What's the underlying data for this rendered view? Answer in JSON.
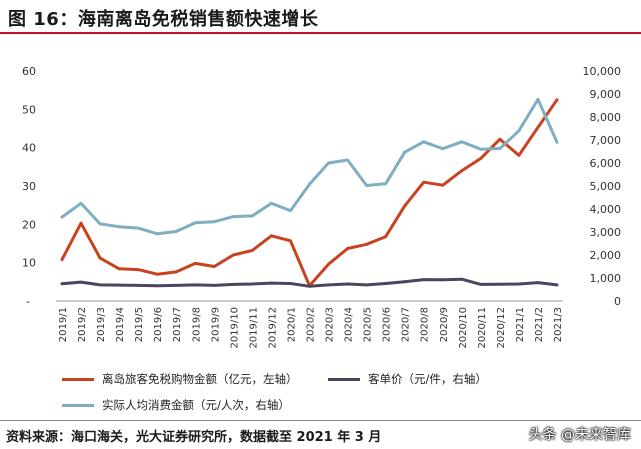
{
  "title": "图 16：海南离岛免税销售额快速增长",
  "source": "资料来源：海口海关，光大证券研究所，数据截至 2021 年 3 月",
  "watermark": "头条 @未来智库",
  "chart_data": {
    "type": "line",
    "categories": [
      "2019/1",
      "2019/2",
      "2019/3",
      "2019/4",
      "2019/5",
      "2019/6",
      "2019/7",
      "2019/8",
      "2019/9",
      "2019/10",
      "2019/11",
      "2019/12",
      "2020/1",
      "2020/2",
      "2020/3",
      "2020/4",
      "2020/5",
      "2020/6",
      "2020/7",
      "2020/8",
      "2020/9",
      "2020/10",
      "2020/11",
      "2020/12",
      "2021/1",
      "2021/2",
      "2021/3"
    ],
    "y_left": {
      "ylim": [
        0,
        60
      ],
      "ticks": [
        "0",
        "10",
        "20",
        "30",
        "40",
        "50",
        "60"
      ]
    },
    "y_right": {
      "ylim": [
        0,
        10000
      ],
      "ticks": [
        "0",
        "1,000",
        "2,000",
        "3,000",
        "4,000",
        "5,000",
        "6,000",
        "7,000",
        "8,000",
        "9,000",
        "10,000"
      ]
    },
    "grid": false,
    "legend_position": "bottom",
    "series": [
      {
        "name": "离岛旅客免税购物金额（亿元，左轴）",
        "axis": "left",
        "color": "#c9421f",
        "values": [
          10.8,
          20.3,
          11.2,
          8.4,
          8.2,
          7.0,
          7.6,
          9.8,
          9.0,
          12.0,
          13.2,
          17.0,
          15.7,
          4.0,
          9.6,
          13.7,
          14.8,
          16.8,
          24.8,
          31.0,
          30.2,
          34.0,
          37.2,
          42.2,
          38.0,
          45.3,
          52.5
        ]
      },
      {
        "name": "客单价（元/件，右轴）",
        "axis": "right",
        "color": "#4a4560",
        "values": [
          750,
          820,
          700,
          690,
          680,
          660,
          680,
          700,
          680,
          720,
          740,
          780,
          760,
          640,
          700,
          740,
          700,
          760,
          840,
          930,
          920,
          950,
          720,
          730,
          740,
          800,
          700
        ]
      },
      {
        "name": "实际人均消费金额（元/人次，右轴）",
        "axis": "right",
        "color": "#7faec3",
        "values": [
          3650,
          4250,
          3350,
          3230,
          3170,
          2920,
          3020,
          3400,
          3450,
          3670,
          3700,
          4250,
          3930,
          5080,
          6000,
          6130,
          5020,
          5100,
          6470,
          6920,
          6620,
          6920,
          6600,
          6630,
          7400,
          8770,
          6900
        ]
      }
    ]
  }
}
